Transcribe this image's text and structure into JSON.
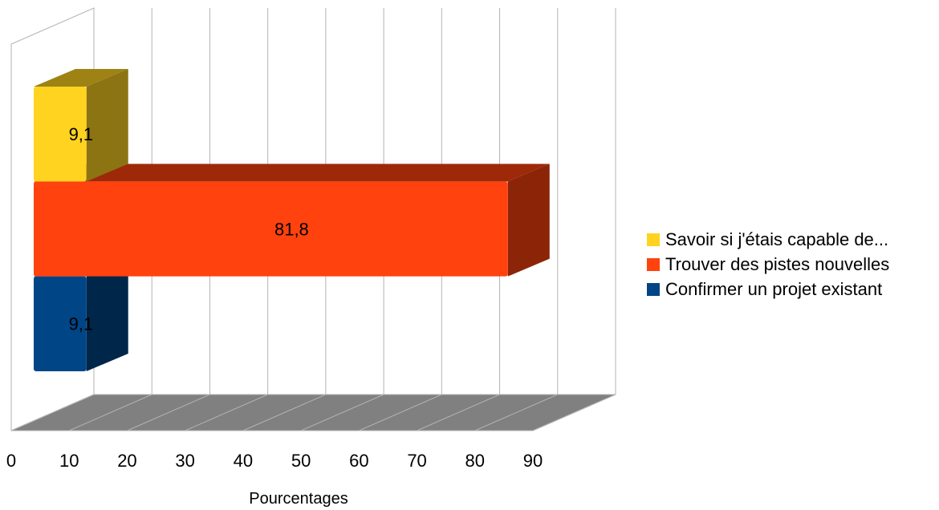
{
  "chart_data": {
    "type": "bar",
    "orientation": "horizontal",
    "style": "3d",
    "xlabel": "Pourcentages",
    "xlim": [
      0,
      90
    ],
    "xticks": [
      0,
      10,
      20,
      30,
      40,
      50,
      60,
      70,
      80,
      90
    ],
    "grid": true,
    "legend_position": "right",
    "series": [
      {
        "name": "Confirmer un projet existant",
        "value": 9.1,
        "label": "9,1",
        "color": "#004586"
      },
      {
        "name": "Trouver des pistes nouvelles",
        "value": 81.8,
        "label": "81,8",
        "color": "#ff420e"
      },
      {
        "name": "Savoir si j'étais capable de...",
        "value": 9.1,
        "label": "9,1",
        "color": "#ffd320"
      }
    ]
  }
}
